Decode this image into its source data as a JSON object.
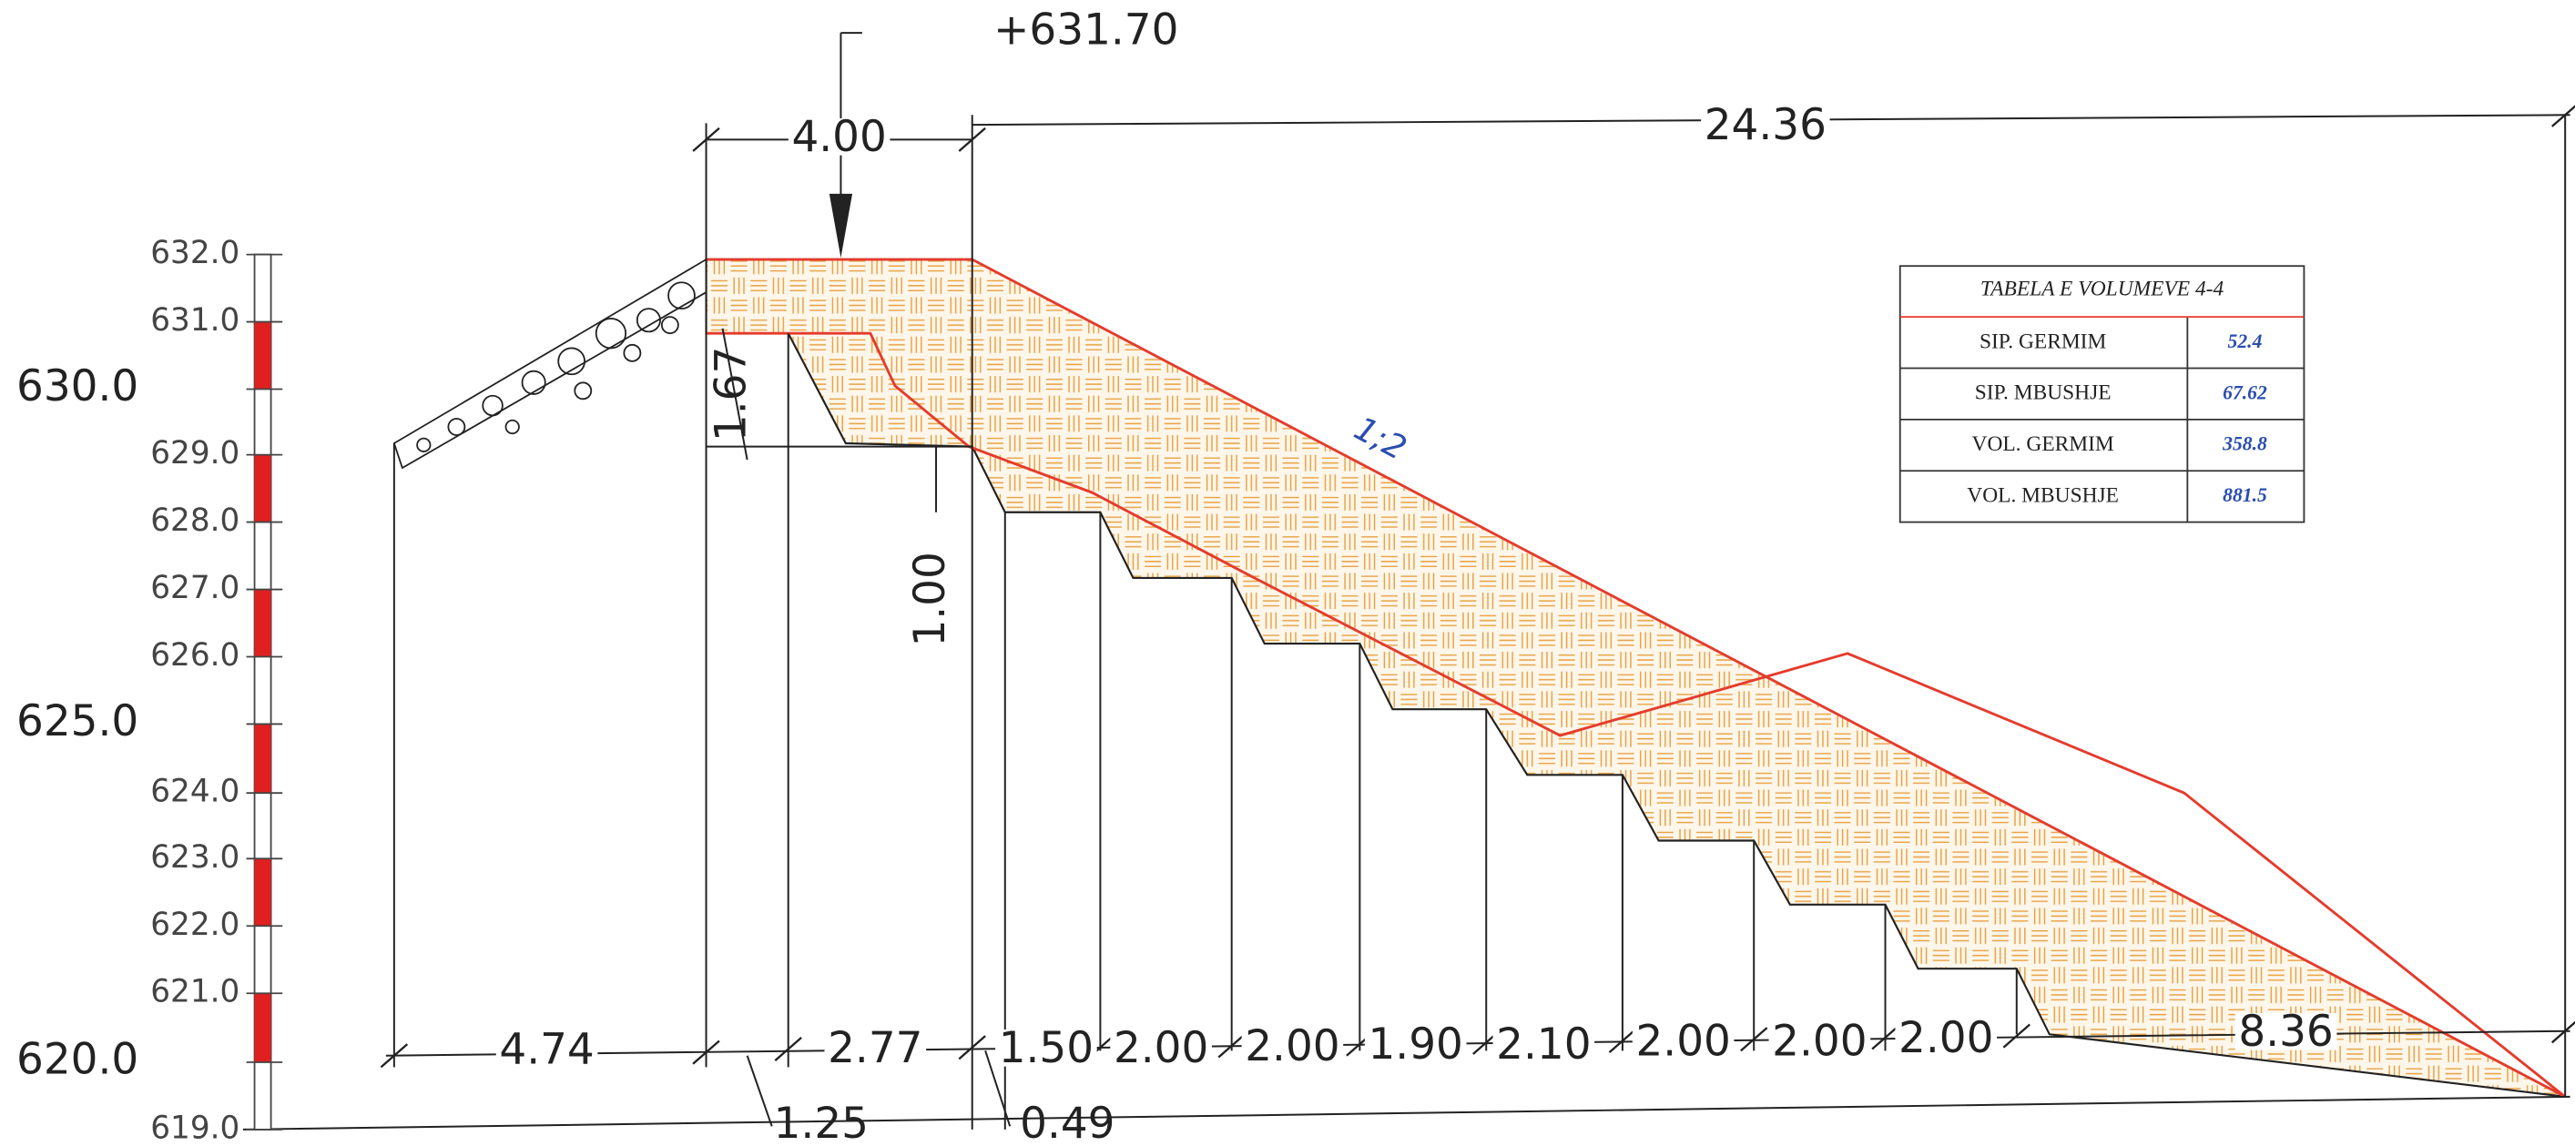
{
  "elevation_scale": {
    "ticks": [
      "632.0",
      "631.0",
      "629.0",
      "628.0",
      "627.0",
      "626.0",
      "624.0",
      "623.0",
      "622.0",
      "621.0",
      "619.0"
    ],
    "major": [
      "630.0",
      "625.0",
      "620.0"
    ]
  },
  "elevation_mark": "+631.70",
  "dimensions": {
    "crest_width": "4.00",
    "total_width": "24.36",
    "step_height_top": "1.67",
    "step_height": "1.00",
    "slope": "1;2",
    "bottom": [
      "4.74",
      "2.77",
      "1.50",
      "2.00",
      "2.00",
      "1.90",
      "2.10",
      "2.00",
      "2.00",
      "2.00",
      "8.36"
    ],
    "offset_1": "1.25",
    "offset_2": "0.49"
  },
  "volume_table": {
    "title": "TABELA E VOLUMEVE 4-4",
    "rows": [
      [
        "SIP. GERMIM",
        "52.4"
      ],
      [
        "SIP. MBUSHJE",
        "67.62"
      ],
      [
        "VOL. GERMIM",
        "358.8"
      ],
      [
        "VOL. MBUSHJE",
        "881.5"
      ]
    ]
  }
}
